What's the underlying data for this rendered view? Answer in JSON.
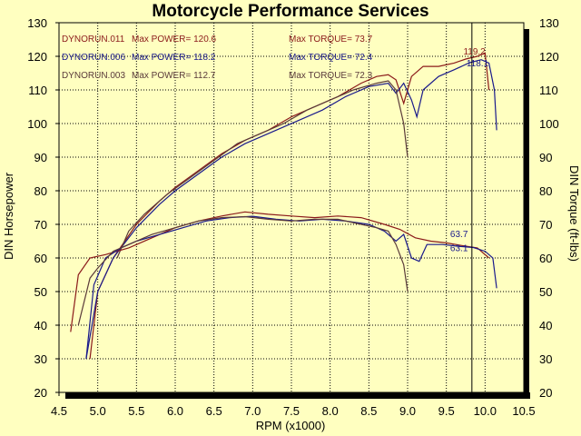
{
  "chart_data": {
    "type": "line",
    "title": "Motorcycle Performance Services",
    "xlabel": "RPM (x1000)",
    "ylabel": "DIN Horsepower",
    "y2label": "DIN Torque (ft-lbs)",
    "xlim": [
      4.5,
      10.5
    ],
    "ylim": [
      20,
      130
    ],
    "y2lim": [
      20,
      130
    ],
    "x_ticks": [
      "4.5",
      "5.0",
      "5.5",
      "6.0",
      "6.5",
      "7.0",
      "7.5",
      "8.0",
      "8.5",
      "9.0",
      "9.5",
      "10.0",
      "10.5"
    ],
    "y_ticks": [
      "20",
      "30",
      "40",
      "50",
      "60",
      "70",
      "80",
      "90",
      "100",
      "110",
      "120",
      "130"
    ],
    "y2_ticks": [
      "20",
      "30",
      "40",
      "50",
      "60",
      "70",
      "80",
      "90",
      "100",
      "110",
      "120",
      "130"
    ],
    "grid": true,
    "vline_x": 9.83,
    "colors": {
      "background": "#ffffc0",
      "plot_background": "#ffffc0",
      "grid": "#000000",
      "frame_shadow": "#000000"
    },
    "legend": [
      {
        "run": "DYNORUN.011",
        "power": "Max POWER= 120.6",
        "torque": "Max TORQUE= 73.7",
        "color": "#8b1a1a"
      },
      {
        "run": "DYNORUN.006",
        "power": "Max POWER= 118.2",
        "torque": "Max TORQUE= 72.4",
        "color": "#1a1a8b"
      },
      {
        "run": "DYNORUN.003",
        "power": "Max POWER= 112.7",
        "torque": "Max TORQUE= 72.3",
        "color": "#5a3a3a"
      }
    ],
    "annotations": [
      {
        "text": "119.2",
        "x": 9.72,
        "y": 120.5,
        "color": "#8b1a1a"
      },
      {
        "text": "118.1",
        "x": 9.76,
        "y": 117.0,
        "color": "#1a1a8b"
      },
      {
        "text": "63.7",
        "x": 9.55,
        "y": 66.2,
        "color": "#1a1a8b"
      },
      {
        "text": "63.1",
        "x": 9.55,
        "y": 62.0,
        "color": "#1a1a8b"
      }
    ],
    "series": [
      {
        "kind": "power",
        "color": "#8b1a1a",
        "x": [
          4.9,
          5.0,
          5.2,
          5.5,
          5.8,
          6.0,
          6.3,
          6.6,
          6.9,
          7.2,
          7.5,
          7.8,
          8.1,
          8.4,
          8.6,
          8.75,
          8.85,
          8.95,
          9.05,
          9.2,
          9.4,
          9.6,
          9.75,
          9.9,
          10.0,
          10.05
        ],
        "y": [
          30,
          50,
          60,
          70,
          77,
          81,
          86,
          91,
          95,
          98,
          102,
          105,
          108,
          112,
          114,
          114.5,
          113,
          106,
          114,
          117,
          117,
          118,
          119.2,
          120,
          121,
          110
        ]
      },
      {
        "kind": "power",
        "color": "#1a1a8b",
        "x": [
          4.85,
          5.0,
          5.2,
          5.5,
          5.8,
          6.0,
          6.3,
          6.6,
          6.9,
          7.1,
          7.3,
          7.6,
          7.9,
          8.2,
          8.5,
          8.75,
          8.85,
          8.95,
          9.05,
          9.12,
          9.2,
          9.4,
          9.6,
          9.8,
          9.95,
          10.05,
          10.12,
          10.15
        ],
        "y": [
          30,
          50,
          60,
          69,
          76,
          80,
          85,
          90,
          94,
          96,
          98,
          101,
          104,
          108,
          111,
          112,
          109,
          112,
          107,
          102,
          110,
          114,
          116,
          118.1,
          119,
          118,
          110,
          98
        ]
      },
      {
        "kind": "power",
        "color": "#5a3a3a",
        "x": [
          5.25,
          5.4,
          5.6,
          5.9,
          6.2,
          6.5,
          6.8,
          7.1,
          7.4,
          7.7,
          8.0,
          8.3,
          8.6,
          8.75,
          8.85,
          8.95,
          9.0
        ],
        "y": [
          60,
          68,
          73,
          79,
          84,
          89,
          94,
          97,
          100,
          104,
          107,
          110,
          112,
          112.7,
          110,
          100,
          90
        ]
      },
      {
        "kind": "torque",
        "color": "#8b1a1a",
        "x": [
          4.65,
          4.75,
          4.9,
          5.1,
          5.4,
          5.7,
          6.0,
          6.3,
          6.6,
          6.9,
          7.2,
          7.5,
          7.8,
          8.1,
          8.4,
          8.7,
          8.9,
          9.1,
          9.3,
          9.5,
          9.7,
          9.9,
          10.05
        ],
        "y": [
          38,
          55,
          60,
          61,
          63,
          66,
          69,
          71,
          72.5,
          73.7,
          73,
          72.5,
          72,
          72.5,
          72,
          70,
          68.5,
          66,
          65,
          64.5,
          63.7,
          63,
          60
        ]
      },
      {
        "kind": "torque",
        "color": "#1a1a8b",
        "x": [
          4.85,
          4.95,
          5.1,
          5.3,
          5.5,
          5.8,
          6.1,
          6.4,
          6.7,
          7.0,
          7.3,
          7.6,
          7.9,
          8.2,
          8.5,
          8.7,
          8.85,
          8.95,
          9.05,
          9.15,
          9.25,
          9.45,
          9.65,
          9.85,
          10.0,
          10.1,
          10.15
        ],
        "y": [
          30,
          52,
          60,
          63,
          65,
          67,
          69,
          71,
          72,
          72.4,
          71.5,
          71,
          71.5,
          71,
          70,
          68,
          65,
          67,
          60,
          59,
          64,
          64,
          63.5,
          63.1,
          62,
          60,
          51
        ]
      },
      {
        "kind": "torque",
        "color": "#5a3a3a",
        "x": [
          4.75,
          4.9,
          5.0,
          5.2,
          5.4,
          5.7,
          6.0,
          6.3,
          6.6,
          6.9,
          7.2,
          7.5,
          7.8,
          8.1,
          8.4,
          8.6,
          8.75,
          8.85,
          8.95,
          9.0
        ],
        "y": [
          40,
          54,
          57,
          62,
          64,
          67,
          69,
          71,
          72,
          72.3,
          71.5,
          71,
          71.5,
          71.5,
          70,
          69,
          68,
          64,
          58,
          50
        ]
      }
    ]
  }
}
